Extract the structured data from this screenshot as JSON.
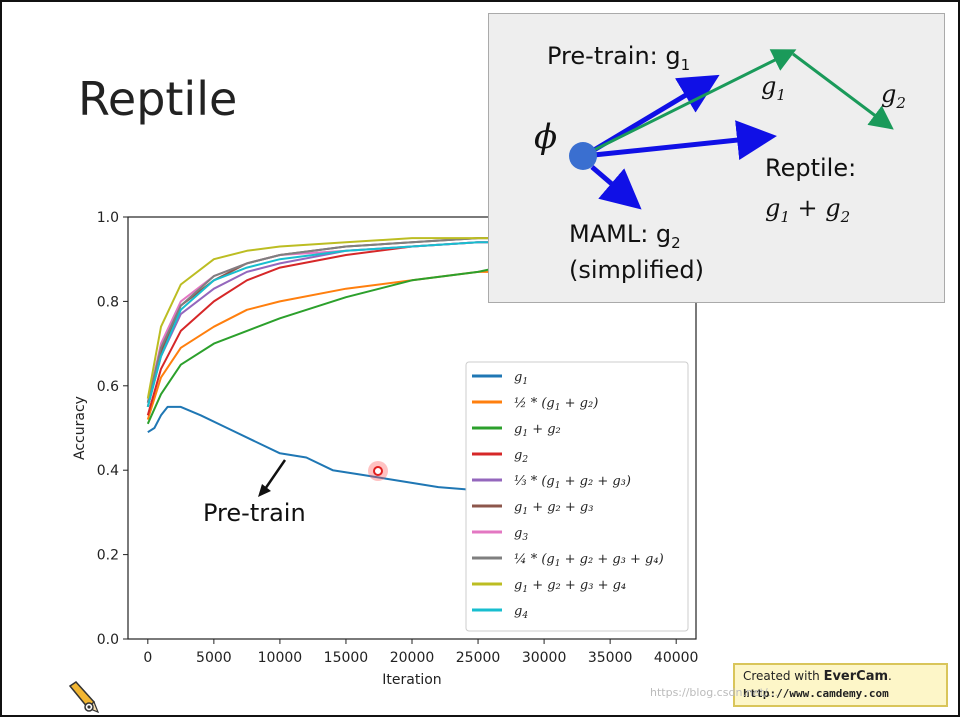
{
  "slide": {
    "title": "Reptile"
  },
  "inset": {
    "pretrain_label": "Pre-train: g",
    "pretrain_sub": "1",
    "phi": "ϕ",
    "g1": "g",
    "g1_sub": "1",
    "g2": "g",
    "g2_sub": "2",
    "reptile_label": "Reptile:",
    "reptile_expr_a": "g",
    "reptile_expr_a_sub": "1",
    "reptile_plus": " + ",
    "reptile_expr_b": "g",
    "reptile_expr_b_sub": "2",
    "maml_label": "MAML: g",
    "maml_sub": "2",
    "maml_note": "(simplified)",
    "colors": {
      "blue": "#1010e6",
      "green": "#1a9a5a",
      "dot": "#3a6fd0"
    }
  },
  "annotation": {
    "pretrain": "Pre-train"
  },
  "footer": {
    "evercam_prefix": "Created with ",
    "evercam_brand": "EverCam",
    "evercam_suffix": ".",
    "evercam_url": "http://www.camdemy.com",
    "watermark": "https://blog.csdn.net/..."
  },
  "chart_data": {
    "type": "line",
    "xlabel": "Iteration",
    "ylabel": "Accuracy",
    "xlim": [
      -1500,
      41500
    ],
    "ylim": [
      0.0,
      1.0
    ],
    "xticks": [
      0,
      5000,
      10000,
      15000,
      20000,
      25000,
      30000,
      35000,
      40000
    ],
    "yticks": [
      0.0,
      0.2,
      0.4,
      0.6,
      0.8,
      1.0
    ],
    "xtick_labels": [
      "0",
      "5000",
      "10000",
      "15000",
      "20000",
      "25000",
      "30000",
      "35000",
      "40000"
    ],
    "ytick_labels": [
      "0.0",
      "0.2",
      "0.4",
      "0.6",
      "0.8",
      "1.0"
    ],
    "legend_position": "lower-right",
    "grid": false,
    "series": [
      {
        "name": "g1",
        "legend": [
          "g",
          "1",
          ""
        ],
        "color": "#1f77b4",
        "x": [
          0,
          500,
          1000,
          1500,
          2500,
          4000,
          6000,
          8000,
          10000,
          12000,
          14000,
          16000,
          18000,
          20000,
          22000,
          24000,
          26000,
          28000,
          30000,
          32000,
          34000,
          36000,
          38000,
          40000
        ],
        "y": [
          0.49,
          0.5,
          0.53,
          0.55,
          0.55,
          0.53,
          0.5,
          0.47,
          0.44,
          0.43,
          0.4,
          0.39,
          0.38,
          0.37,
          0.36,
          0.355,
          0.345,
          0.34,
          0.34,
          0.335,
          0.335,
          0.335,
          0.335,
          0.335
        ]
      },
      {
        "name": "1/2*(g1+g2)",
        "legend": [
          "½ * (g",
          "1",
          " + g₂)"
        ],
        "color": "#ff7f0e",
        "x": [
          0,
          1000,
          2500,
          5000,
          7500,
          10000,
          15000,
          20000,
          25000,
          26500
        ],
        "y": [
          0.52,
          0.62,
          0.69,
          0.74,
          0.78,
          0.8,
          0.83,
          0.85,
          0.87,
          0.87
        ]
      },
      {
        "name": "g1+g2",
        "legend": [
          "g",
          "1",
          " + g₂"
        ],
        "color": "#2ca02c",
        "x": [
          0,
          1000,
          2500,
          5000,
          7500,
          10000,
          15000,
          20000,
          25000,
          26500
        ],
        "y": [
          0.51,
          0.58,
          0.65,
          0.7,
          0.73,
          0.76,
          0.81,
          0.85,
          0.87,
          0.88
        ]
      },
      {
        "name": "g2",
        "legend": [
          "g",
          "2",
          ""
        ],
        "color": "#d62728",
        "x": [
          0,
          1000,
          2500,
          5000,
          7500,
          10000,
          15000,
          20000,
          25000,
          26500
        ],
        "y": [
          0.53,
          0.64,
          0.73,
          0.8,
          0.85,
          0.88,
          0.91,
          0.93,
          0.94,
          0.94
        ]
      },
      {
        "name": "1/3*(g1+g2+g3)",
        "legend": [
          "⅓ * (g",
          "1",
          " + g₂ + g₃)"
        ],
        "color": "#9467bd",
        "x": [
          0,
          1000,
          2500,
          5000,
          7500,
          10000,
          15000,
          20000,
          25000,
          26500
        ],
        "y": [
          0.55,
          0.67,
          0.77,
          0.83,
          0.87,
          0.89,
          0.92,
          0.93,
          0.94,
          0.94
        ]
      },
      {
        "name": "g1+g2+g3",
        "legend": [
          "g",
          "1",
          " + g₂ + g₃"
        ],
        "color": "#8c564b",
        "x": [
          0,
          1000,
          2500,
          5000,
          7500,
          10000,
          15000,
          20000,
          25000,
          26500
        ],
        "y": [
          0.55,
          0.68,
          0.79,
          0.85,
          0.89,
          0.91,
          0.93,
          0.94,
          0.95,
          0.95
        ]
      },
      {
        "name": "g3",
        "legend": [
          "g",
          "3",
          ""
        ],
        "color": "#e377c2",
        "x": [
          0,
          1000,
          2500,
          5000,
          7500,
          10000,
          15000,
          20000,
          25000,
          26500
        ],
        "y": [
          0.56,
          0.7,
          0.8,
          0.86,
          0.89,
          0.91,
          0.92,
          0.93,
          0.94,
          0.94
        ]
      },
      {
        "name": "1/4*(g1+g2+g3+g4)",
        "legend": [
          "¼ * (g",
          "1",
          " + g₂ + g₃ + g₄)"
        ],
        "color": "#7f7f7f",
        "x": [
          0,
          1000,
          2500,
          5000,
          7500,
          10000,
          15000,
          20000,
          25000,
          26500
        ],
        "y": [
          0.56,
          0.69,
          0.79,
          0.86,
          0.89,
          0.91,
          0.93,
          0.94,
          0.95,
          0.95
        ]
      },
      {
        "name": "g1+g2+g3+g4",
        "legend": [
          "g",
          "1",
          " + g₂ + g₃ + g₄"
        ],
        "color": "#bcbd22",
        "x": [
          0,
          1000,
          2500,
          5000,
          7500,
          10000,
          15000,
          20000,
          25000,
          26500
        ],
        "y": [
          0.57,
          0.74,
          0.84,
          0.9,
          0.92,
          0.93,
          0.94,
          0.95,
          0.95,
          0.95
        ]
      },
      {
        "name": "g4",
        "legend": [
          "g",
          "4",
          ""
        ],
        "color": "#17becf",
        "x": [
          0,
          1000,
          2500,
          5000,
          7500,
          10000,
          15000,
          20000,
          25000,
          26500
        ],
        "y": [
          0.55,
          0.67,
          0.78,
          0.85,
          0.88,
          0.9,
          0.92,
          0.93,
          0.94,
          0.94
        ]
      }
    ]
  }
}
